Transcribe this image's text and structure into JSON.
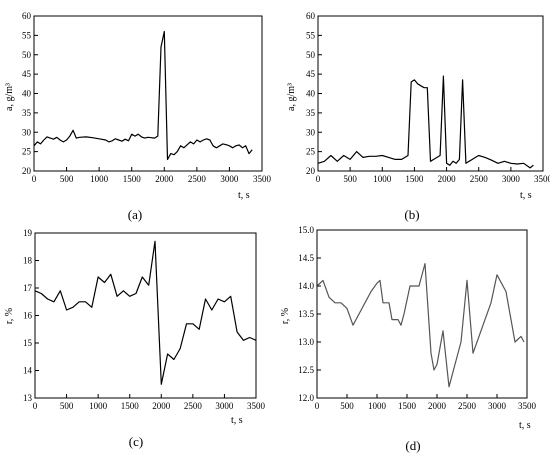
{
  "chart_data": [
    {
      "type": "line",
      "panel_label": "(a)",
      "xlabel": "t, s",
      "ylabel": "a, g/m³",
      "xlim": [
        0,
        3500
      ],
      "ylim": [
        20,
        60
      ],
      "xticks": [
        0,
        500,
        1000,
        1500,
        2000,
        2500,
        3000,
        3500
      ],
      "yticks": [
        20,
        25,
        30,
        35,
        40,
        45,
        50,
        55,
        60
      ],
      "line_color": "#000000",
      "x": [
        0,
        50,
        100,
        150,
        200,
        250,
        300,
        350,
        400,
        450,
        500,
        550,
        600,
        650,
        700,
        800,
        900,
        1000,
        1100,
        1150,
        1200,
        1250,
        1300,
        1350,
        1400,
        1450,
        1500,
        1550,
        1600,
        1650,
        1700,
        1750,
        1800,
        1850,
        1900,
        1950,
        2000,
        2050,
        2100,
        2150,
        2200,
        2250,
        2300,
        2400,
        2450,
        2500,
        2550,
        2600,
        2650,
        2700,
        2750,
        2800,
        2850,
        2900,
        2950,
        3000,
        3050,
        3100,
        3150,
        3200,
        3250,
        3300,
        3350
      ],
      "y": [
        26.5,
        27.5,
        27.0,
        28.0,
        28.8,
        28.5,
        28.2,
        28.7,
        28.0,
        27.5,
        28.0,
        29.0,
        30.5,
        28.5,
        28.7,
        28.8,
        28.6,
        28.3,
        28.0,
        27.5,
        27.8,
        28.3,
        28.0,
        27.7,
        28.2,
        27.8,
        29.5,
        29.0,
        29.5,
        28.8,
        28.5,
        28.7,
        28.6,
        28.5,
        29.0,
        52.0,
        56.0,
        23.0,
        24.5,
        24.2,
        25.0,
        26.5,
        26.0,
        27.5,
        27.0,
        28.0,
        27.5,
        28.0,
        28.3,
        28.0,
        26.5,
        26.0,
        26.5,
        27.0,
        26.8,
        26.5,
        26.0,
        26.5,
        26.7,
        26.0,
        26.5,
        24.5,
        25.5
      ]
    },
    {
      "type": "line",
      "panel_label": "(b)",
      "xlabel": "t, s",
      "ylabel": "a, g/m³",
      "xlim": [
        0,
        3500
      ],
      "ylim": [
        20,
        60
      ],
      "xticks": [
        0,
        500,
        1000,
        1500,
        2000,
        2500,
        3000,
        3500
      ],
      "yticks": [
        20,
        25,
        30,
        35,
        40,
        45,
        50,
        55,
        60
      ],
      "line_color": "#000000",
      "x": [
        0,
        100,
        200,
        300,
        400,
        500,
        600,
        700,
        800,
        900,
        1000,
        1100,
        1200,
        1300,
        1400,
        1450,
        1500,
        1550,
        1600,
        1650,
        1700,
        1750,
        1800,
        1900,
        1950,
        2000,
        2050,
        2100,
        2150,
        2200,
        2250,
        2300,
        2350,
        2400,
        2450,
        2500,
        2600,
        2700,
        2800,
        2900,
        3000,
        3100,
        3200,
        3300,
        3350
      ],
      "y": [
        22.0,
        22.5,
        24.0,
        22.5,
        24.0,
        23.0,
        25.0,
        23.5,
        23.8,
        23.8,
        24.0,
        23.5,
        23.0,
        23.0,
        24.0,
        43.0,
        43.5,
        42.5,
        42.0,
        41.5,
        41.5,
        22.5,
        23.0,
        24.0,
        44.5,
        22.0,
        21.5,
        22.5,
        22.0,
        23.0,
        43.5,
        22.0,
        22.5,
        23.0,
        23.5,
        24.0,
        23.5,
        22.8,
        22.0,
        22.5,
        22.0,
        21.8,
        22.0,
        20.8,
        21.5
      ]
    },
    {
      "type": "line",
      "panel_label": "(c)",
      "xlabel": "t, s",
      "ylabel": "r, %",
      "xlim": [
        0,
        3500
      ],
      "ylim": [
        13,
        19
      ],
      "xticks": [
        0,
        500,
        1000,
        1500,
        2000,
        2500,
        3000,
        3500
      ],
      "yticks": [
        13,
        14,
        15,
        16,
        17,
        18,
        19
      ],
      "line_color": "#000000",
      "x": [
        0,
        100,
        200,
        300,
        400,
        500,
        600,
        700,
        800,
        900,
        1000,
        1100,
        1200,
        1300,
        1400,
        1500,
        1600,
        1700,
        1800,
        1900,
        2000,
        2100,
        2200,
        2300,
        2400,
        2500,
        2600,
        2700,
        2800,
        2900,
        3000,
        3100,
        3200,
        3300,
        3400,
        3500
      ],
      "y": [
        16.9,
        16.8,
        16.6,
        16.5,
        16.9,
        16.2,
        16.3,
        16.5,
        16.5,
        16.3,
        17.4,
        17.2,
        17.5,
        16.7,
        16.9,
        16.7,
        16.8,
        17.4,
        17.1,
        18.7,
        13.5,
        14.6,
        14.4,
        14.8,
        15.7,
        15.7,
        15.5,
        16.6,
        16.2,
        16.6,
        16.5,
        16.7,
        15.4,
        15.1,
        15.2,
        15.1
      ]
    },
    {
      "type": "line",
      "panel_label": "(d)",
      "xlabel": "t, s",
      "ylabel": "r, %",
      "xlim": [
        0,
        3500
      ],
      "ylim": [
        12.0,
        15.0
      ],
      "xticks": [
        0,
        500,
        1000,
        1500,
        2000,
        2500,
        3000,
        3500
      ],
      "yticks": [
        "12.0",
        "12.5",
        "13.0",
        "13.5",
        "14.0",
        "14.5",
        "15.0"
      ],
      "line_color": "#555555",
      "x": [
        0,
        100,
        200,
        300,
        400,
        500,
        600,
        700,
        800,
        900,
        1000,
        1050,
        1100,
        1200,
        1250,
        1350,
        1400,
        1450,
        1550,
        1700,
        1800,
        1900,
        1950,
        2000,
        2100,
        2200,
        2300,
        2400,
        2500,
        2600,
        2700,
        2800,
        2900,
        3000,
        3100,
        3150,
        3200,
        3250,
        3300,
        3400,
        3450
      ],
      "y": [
        14.0,
        14.1,
        13.8,
        13.7,
        13.7,
        13.6,
        13.3,
        13.5,
        13.7,
        13.9,
        14.05,
        14.1,
        13.7,
        13.7,
        13.4,
        13.4,
        13.3,
        13.5,
        14.0,
        14.0,
        14.4,
        12.8,
        12.5,
        12.6,
        13.2,
        12.2,
        12.6,
        13.0,
        14.1,
        12.8,
        13.1,
        13.4,
        13.7,
        14.2,
        14.0,
        13.9,
        13.6,
        13.3,
        13.0,
        13.1,
        13.0
      ]
    }
  ]
}
